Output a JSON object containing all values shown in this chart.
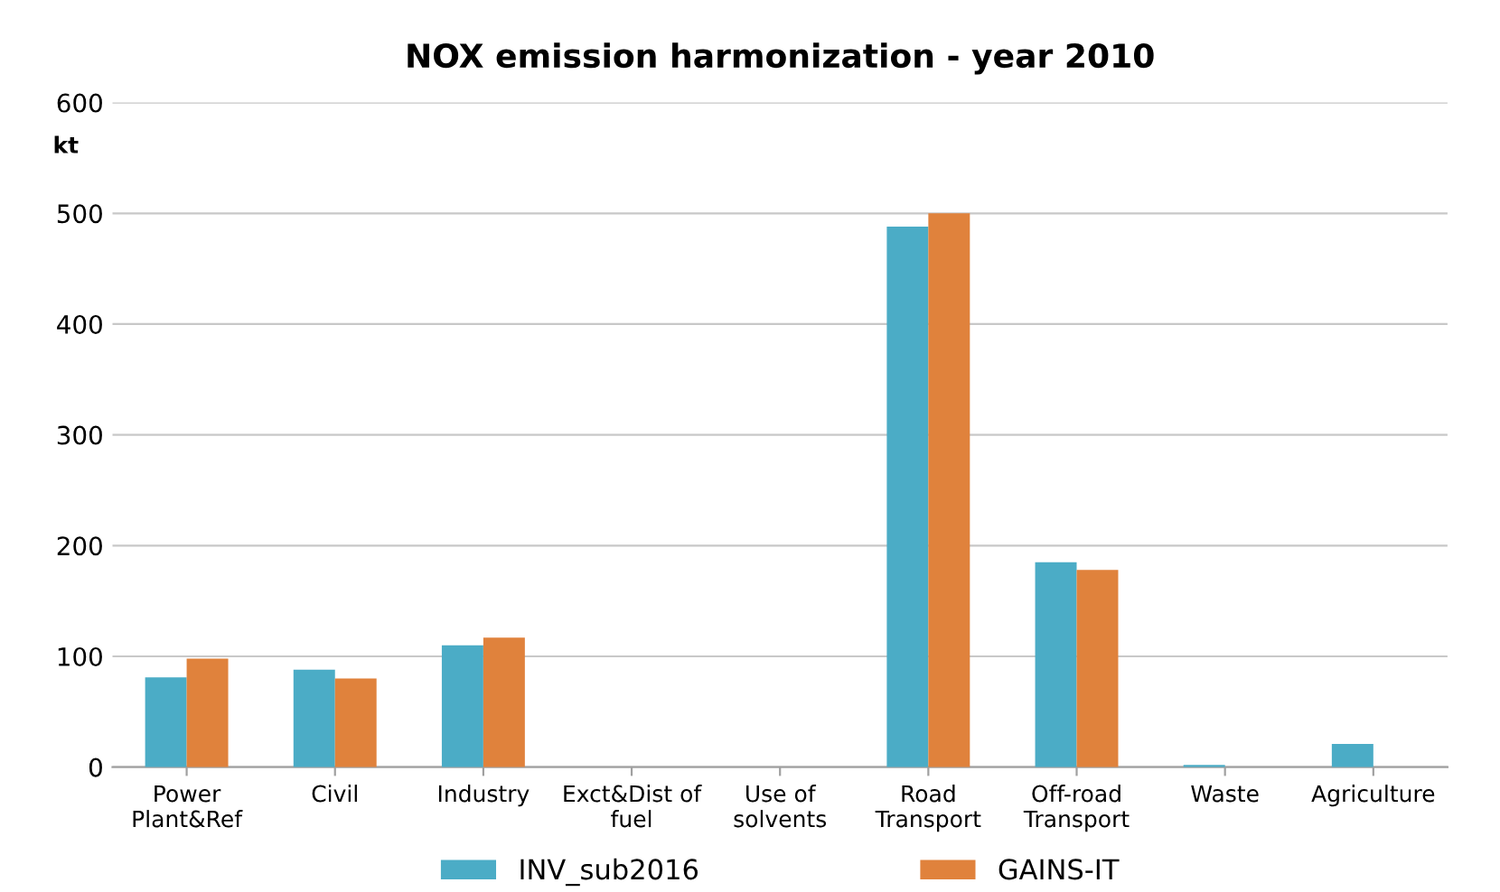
{
  "chart_data": {
    "type": "bar",
    "title": "NOX emission harmonization - year 2010",
    "ylabel": "kt",
    "categories": [
      "Power\nPlant&Ref",
      "Civil",
      "Industry",
      "Exct&Dist of\nfuel",
      "Use of\nsolvents",
      "Road\nTransport",
      "Off-road\nTransport",
      "Waste",
      "Agriculture"
    ],
    "series": [
      {
        "name": "INV_sub2016",
        "color": "#4bacc6",
        "values": [
          81,
          88,
          110,
          0,
          0,
          488,
          185,
          2,
          21
        ]
      },
      {
        "name": "GAINS-IT",
        "color": "#e0823c",
        "values": [
          98,
          80,
          117,
          0,
          0,
          500,
          178,
          0,
          0
        ]
      }
    ],
    "ylim": [
      0,
      600
    ],
    "yticks": [
      0,
      100,
      200,
      300,
      400,
      500,
      600
    ],
    "grid": "y",
    "legend": "bottom"
  }
}
